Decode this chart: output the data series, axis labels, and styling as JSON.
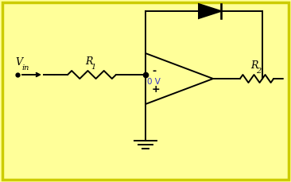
{
  "bg_color": "#ffff99",
  "line_color": "#000000",
  "diode_fill": "#000000",
  "label_color_blue": "#3333cc",
  "label_color_black": "#000000",
  "border_color": "#cccc00",
  "vin_label": "V",
  "vin_sub": "in",
  "r1_label": "R",
  "r1_sub": "1",
  "r2_label": "R",
  "r2_sub": "2",
  "ov_label": "0 V",
  "plus_label": "+",
  "minus_label": "-",
  "figsize": [
    3.66,
    2.29
  ],
  "dpi": 100
}
